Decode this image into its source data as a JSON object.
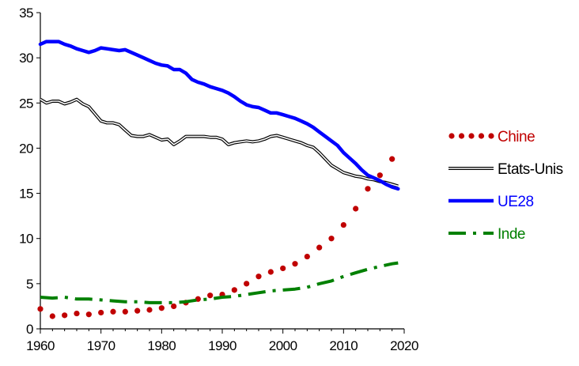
{
  "chart_data": {
    "type": "line",
    "title": "",
    "xlabel": "",
    "ylabel": "",
    "xlim": [
      1960,
      2020
    ],
    "ylim": [
      0,
      35
    ],
    "x_ticks": [
      1960,
      1970,
      1980,
      1990,
      2000,
      2010,
      2020
    ],
    "y_ticks": [
      0,
      5,
      10,
      15,
      20,
      25,
      30,
      35
    ],
    "grid": false,
    "legend_position": "right",
    "series": [
      {
        "name": "Chine",
        "style": "dotted",
        "color": "#C00000",
        "label_color": "#C00000",
        "x": [
          1960,
          1962,
          1964,
          1966,
          1968,
          1970,
          1972,
          1974,
          1976,
          1978,
          1980,
          1982,
          1984,
          1986,
          1988,
          1990,
          1992,
          1994,
          1996,
          1998,
          2000,
          2002,
          2004,
          2006,
          2008,
          2010,
          2012,
          2014,
          2016,
          2018
        ],
        "values": [
          2.2,
          1.4,
          1.5,
          1.7,
          1.6,
          1.8,
          1.9,
          1.9,
          2.0,
          2.1,
          2.3,
          2.5,
          2.9,
          3.3,
          3.7,
          3.8,
          4.3,
          5.0,
          5.8,
          6.3,
          6.7,
          7.2,
          8.0,
          9.0,
          10.0,
          11.5,
          13.3,
          15.5,
          17.0,
          18.8
        ]
      },
      {
        "name": "Etats-Unis",
        "style": "double",
        "color": "#000000",
        "label_color": "#000000",
        "x": [
          1960,
          1961,
          1962,
          1963,
          1964,
          1965,
          1966,
          1967,
          1968,
          1969,
          1970,
          1971,
          1972,
          1973,
          1974,
          1975,
          1976,
          1977,
          1978,
          1979,
          1980,
          1981,
          1982,
          1983,
          1984,
          1985,
          1986,
          1987,
          1988,
          1989,
          1990,
          1991,
          1992,
          1993,
          1994,
          1995,
          1996,
          1997,
          1998,
          1999,
          2000,
          2001,
          2002,
          2003,
          2004,
          2005,
          2006,
          2007,
          2008,
          2009,
          2010,
          2011,
          2012,
          2013,
          2014,
          2015,
          2016,
          2017,
          2018,
          2019
        ],
        "values": [
          25.4,
          25.0,
          25.2,
          25.2,
          24.9,
          25.1,
          25.4,
          24.9,
          24.6,
          23.8,
          23.0,
          22.8,
          22.8,
          22.6,
          22.0,
          21.4,
          21.3,
          21.3,
          21.5,
          21.2,
          20.9,
          21.0,
          20.4,
          20.8,
          21.3,
          21.3,
          21.3,
          21.3,
          21.2,
          21.2,
          21.0,
          20.4,
          20.6,
          20.7,
          20.8,
          20.7,
          20.8,
          21.0,
          21.3,
          21.4,
          21.2,
          21.0,
          20.8,
          20.6,
          20.3,
          20.1,
          19.5,
          18.8,
          18.1,
          17.7,
          17.3,
          17.1,
          16.9,
          16.8,
          16.6,
          16.5,
          16.3,
          16.2,
          16.0,
          15.8
        ]
      },
      {
        "name": "UE28",
        "style": "solid-thick",
        "color": "#0000FF",
        "label_color": "#0000FF",
        "x": [
          1960,
          1961,
          1962,
          1963,
          1964,
          1965,
          1966,
          1967,
          1968,
          1969,
          1970,
          1971,
          1972,
          1973,
          1974,
          1975,
          1976,
          1977,
          1978,
          1979,
          1980,
          1981,
          1982,
          1983,
          1984,
          1985,
          1986,
          1987,
          1988,
          1989,
          1990,
          1991,
          1992,
          1993,
          1994,
          1995,
          1996,
          1997,
          1998,
          1999,
          2000,
          2001,
          2002,
          2003,
          2004,
          2005,
          2006,
          2007,
          2008,
          2009,
          2010,
          2011,
          2012,
          2013,
          2014,
          2015,
          2016,
          2017,
          2018,
          2019
        ],
        "values": [
          31.5,
          31.8,
          31.8,
          31.8,
          31.5,
          31.3,
          31.0,
          30.8,
          30.6,
          30.8,
          31.1,
          31.0,
          30.9,
          30.8,
          30.9,
          30.6,
          30.3,
          30.0,
          29.7,
          29.4,
          29.2,
          29.1,
          28.7,
          28.7,
          28.3,
          27.6,
          27.3,
          27.1,
          26.8,
          26.6,
          26.4,
          26.1,
          25.7,
          25.2,
          24.8,
          24.6,
          24.5,
          24.2,
          23.9,
          23.9,
          23.7,
          23.5,
          23.3,
          23.0,
          22.7,
          22.3,
          21.8,
          21.3,
          20.8,
          20.3,
          19.5,
          18.9,
          18.3,
          17.6,
          17.0,
          16.7,
          16.4,
          16.0,
          15.7,
          15.5
        ]
      },
      {
        "name": "Inde",
        "style": "dash-dot",
        "color": "#008000",
        "label_color": "#008000",
        "x": [
          1960,
          1962,
          1964,
          1966,
          1968,
          1970,
          1972,
          1974,
          1976,
          1978,
          1980,
          1982,
          1984,
          1986,
          1988,
          1990,
          1992,
          1994,
          1996,
          1998,
          2000,
          2002,
          2004,
          2006,
          2008,
          2010,
          2012,
          2014,
          2016,
          2018,
          2019
        ],
        "values": [
          3.5,
          3.4,
          3.5,
          3.3,
          3.3,
          3.2,
          3.1,
          3.0,
          3.0,
          2.9,
          2.9,
          2.9,
          3.0,
          3.2,
          3.3,
          3.5,
          3.6,
          3.8,
          4.0,
          4.2,
          4.3,
          4.4,
          4.6,
          5.0,
          5.3,
          5.8,
          6.2,
          6.6,
          6.9,
          7.2,
          7.3
        ]
      }
    ]
  }
}
